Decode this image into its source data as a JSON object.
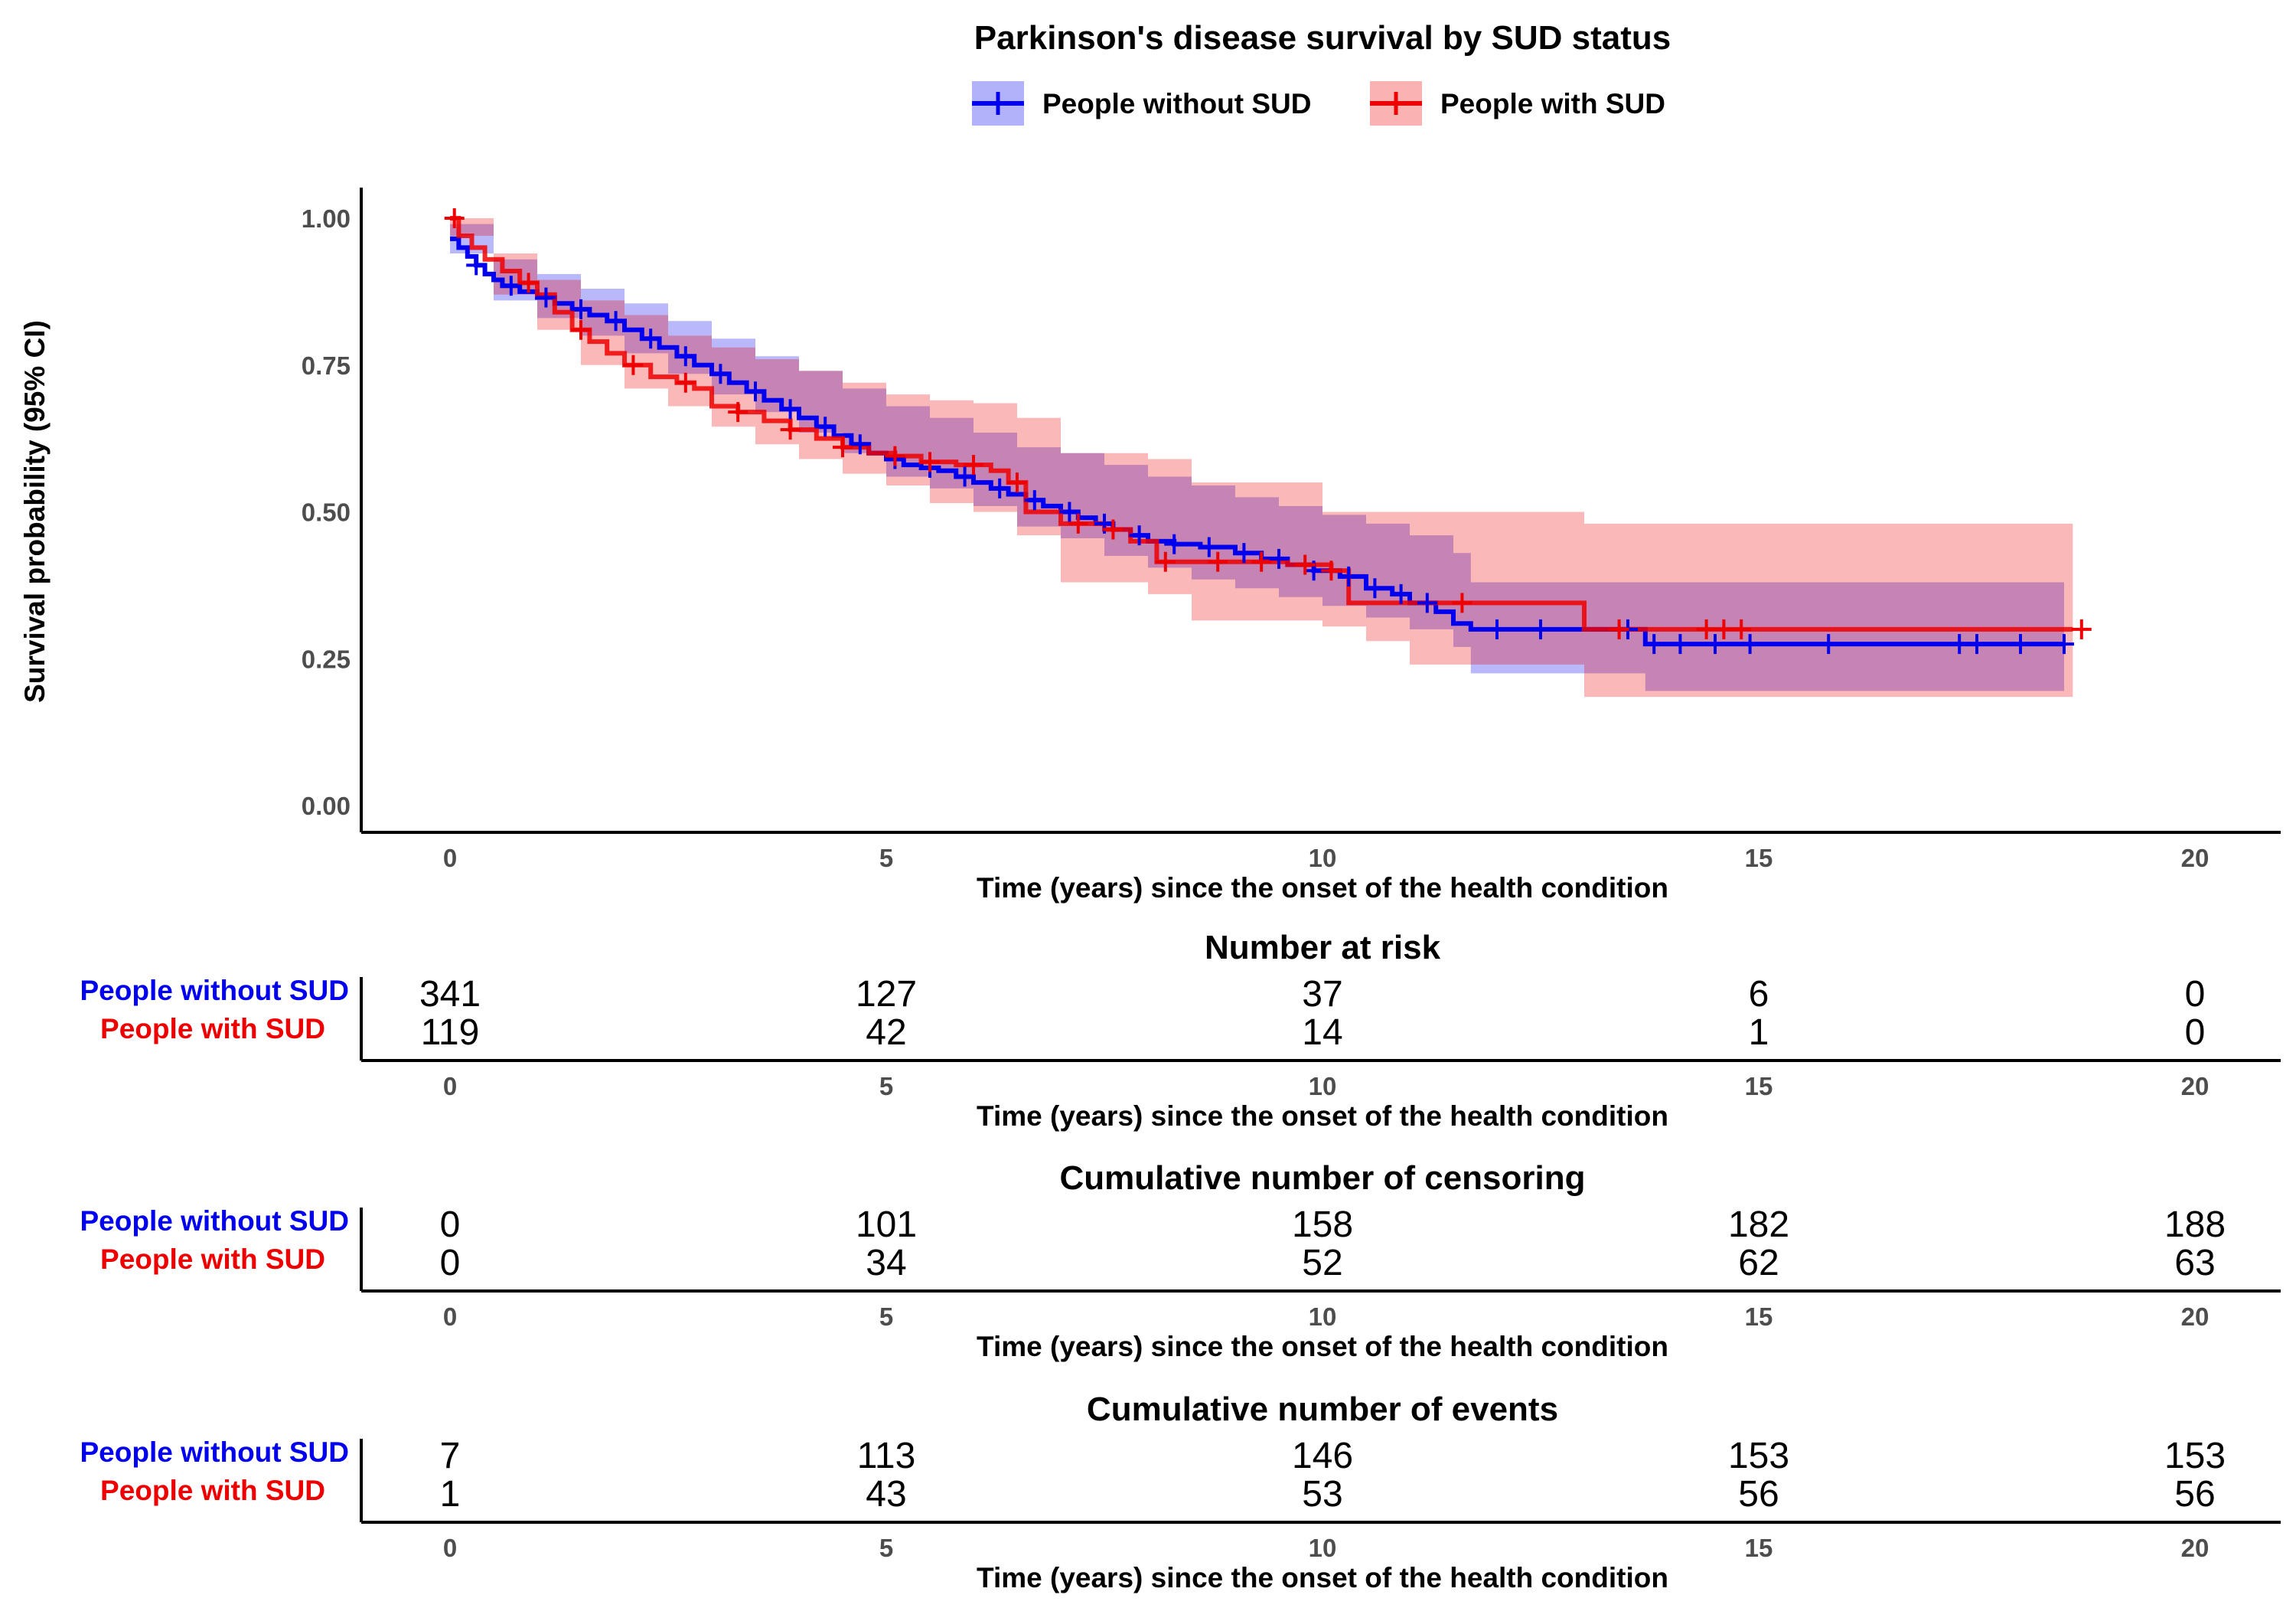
{
  "chart_data": {
    "type": "line",
    "subtype": "kaplan-meier",
    "title": "Parkinson's disease survival by SUD status",
    "xlabel": "Time (years) since the onset of the health condition",
    "ylabel": "Survival probability (95% CI)",
    "xlim": [
      0,
      20
    ],
    "ylim": [
      0,
      1
    ],
    "x_ticks": [
      0,
      5,
      10,
      15,
      20
    ],
    "y_ticks": [
      0.0,
      0.25,
      0.5,
      0.75,
      1.0
    ],
    "y_tick_labels": [
      "0.00",
      "0.25",
      "0.50",
      "0.75",
      "1.00"
    ],
    "legend_position": "top",
    "colors": {
      "without": "#0000ee",
      "with": "#ee0000",
      "overlap": "#b36b99"
    },
    "series": [
      {
        "name": "People without SUD",
        "color": "#0000ee",
        "x": [
          0,
          0.1,
          0.2,
          0.3,
          0.4,
          0.5,
          0.6,
          0.8,
          1.0,
          1.2,
          1.4,
          1.6,
          1.8,
          2.0,
          2.2,
          2.4,
          2.6,
          2.8,
          3.0,
          3.2,
          3.4,
          3.6,
          3.8,
          4.0,
          4.2,
          4.4,
          4.6,
          4.8,
          5.0,
          5.2,
          5.4,
          5.6,
          5.8,
          6.0,
          6.2,
          6.4,
          6.6,
          6.8,
          7.0,
          7.2,
          7.4,
          7.6,
          7.8,
          8.0,
          8.3,
          8.6,
          9.0,
          9.3,
          9.6,
          9.9,
          10.2,
          10.5,
          10.8,
          11.0,
          11.3,
          11.5,
          11.7,
          13.7,
          18.5
        ],
        "y": [
          0.965,
          0.95,
          0.935,
          0.92,
          0.905,
          0.895,
          0.885,
          0.875,
          0.865,
          0.855,
          0.845,
          0.835,
          0.825,
          0.81,
          0.795,
          0.78,
          0.765,
          0.75,
          0.735,
          0.72,
          0.705,
          0.69,
          0.675,
          0.66,
          0.645,
          0.63,
          0.615,
          0.6,
          0.59,
          0.58,
          0.575,
          0.57,
          0.56,
          0.55,
          0.54,
          0.53,
          0.52,
          0.51,
          0.5,
          0.49,
          0.48,
          0.47,
          0.46,
          0.45,
          0.445,
          0.44,
          0.43,
          0.42,
          0.41,
          0.4,
          0.39,
          0.37,
          0.36,
          0.345,
          0.33,
          0.31,
          0.3,
          0.275,
          0.275
        ],
        "ci_x": [
          0,
          0.5,
          1.0,
          1.5,
          2.0,
          2.5,
          3.0,
          3.5,
          4.0,
          4.5,
          5.0,
          5.5,
          6.0,
          6.5,
          7.0,
          7.5,
          8.0,
          8.5,
          9.0,
          9.5,
          10.0,
          10.5,
          11.0,
          11.5,
          11.7,
          12.5,
          13.0,
          13.7,
          18.5
        ],
        "ci_lower": [
          0.94,
          0.86,
          0.83,
          0.8,
          0.77,
          0.735,
          0.7,
          0.67,
          0.635,
          0.6,
          0.56,
          0.54,
          0.51,
          0.475,
          0.455,
          0.425,
          0.405,
          0.385,
          0.37,
          0.355,
          0.34,
          0.32,
          0.3,
          0.27,
          0.225,
          0.225,
          0.225,
          0.195,
          0.195
        ],
        "ci_upper": [
          0.99,
          0.93,
          0.905,
          0.88,
          0.855,
          0.825,
          0.795,
          0.765,
          0.74,
          0.71,
          0.68,
          0.66,
          0.635,
          0.61,
          0.6,
          0.58,
          0.56,
          0.545,
          0.525,
          0.51,
          0.495,
          0.48,
          0.46,
          0.43,
          0.38,
          0.38,
          0.38,
          0.38,
          0.38
        ]
      },
      {
        "name": "People with SUD",
        "color": "#ee0000",
        "x": [
          0,
          0.1,
          0.25,
          0.4,
          0.6,
          0.8,
          1.0,
          1.2,
          1.4,
          1.6,
          1.8,
          2.0,
          2.3,
          2.6,
          2.8,
          3.0,
          3.3,
          3.6,
          3.9,
          4.2,
          4.5,
          4.8,
          5.1,
          5.4,
          5.8,
          6.2,
          6.4,
          6.6,
          7.0,
          7.5,
          7.8,
          8.1,
          8.6,
          9.2,
          9.6,
          10.1,
          10.3,
          11.0,
          13.0,
          18.6
        ],
        "y": [
          1.0,
          0.97,
          0.95,
          0.93,
          0.91,
          0.89,
          0.87,
          0.84,
          0.81,
          0.79,
          0.77,
          0.75,
          0.73,
          0.72,
          0.71,
          0.68,
          0.67,
          0.655,
          0.64,
          0.625,
          0.61,
          0.6,
          0.595,
          0.585,
          0.58,
          0.57,
          0.55,
          0.5,
          0.48,
          0.47,
          0.45,
          0.415,
          0.415,
          0.415,
          0.41,
          0.4,
          0.345,
          0.345,
          0.3,
          0.3
        ],
        "ci_x": [
          0,
          0.5,
          1.0,
          1.5,
          2.0,
          2.5,
          3.0,
          3.5,
          4.0,
          4.5,
          5.0,
          5.5,
          6.0,
          6.5,
          7.0,
          7.5,
          8.0,
          8.5,
          9.0,
          9.5,
          10.0,
          10.5,
          11.0,
          11.5,
          12.0,
          13.0,
          18.6
        ],
        "ci_lower": [
          0.97,
          0.87,
          0.81,
          0.75,
          0.71,
          0.68,
          0.645,
          0.615,
          0.59,
          0.565,
          0.545,
          0.515,
          0.5,
          0.46,
          0.38,
          0.38,
          0.36,
          0.315,
          0.315,
          0.315,
          0.305,
          0.28,
          0.24,
          0.24,
          0.24,
          0.185,
          0.185
        ],
        "ci_upper": [
          1.0,
          0.94,
          0.895,
          0.86,
          0.835,
          0.8,
          0.78,
          0.76,
          0.74,
          0.72,
          0.7,
          0.69,
          0.685,
          0.66,
          0.6,
          0.6,
          0.59,
          0.55,
          0.55,
          0.55,
          0.5,
          0.5,
          0.5,
          0.5,
          0.5,
          0.48,
          0.48
        ]
      }
    ],
    "censor_marks": {
      "People without SUD": [
        0.3,
        0.7,
        1.1,
        1.5,
        1.9,
        2.3,
        2.7,
        3.1,
        3.5,
        3.9,
        4.3,
        4.7,
        5.1,
        5.5,
        5.9,
        6.3,
        6.7,
        7.1,
        7.5,
        7.9,
        8.3,
        8.7,
        9.1,
        9.5,
        9.9,
        10.3,
        10.6,
        10.9,
        11.2,
        12.0,
        12.5,
        13.5,
        13.8,
        14.1,
        14.5,
        14.9,
        15.8,
        17.3,
        17.5,
        18.0,
        18.5
      ],
      "People with SUD": [
        0.05,
        0.9,
        1.5,
        2.1,
        2.7,
        3.3,
        3.9,
        4.5,
        5.1,
        5.5,
        6.0,
        6.5,
        7.2,
        7.6,
        8.2,
        8.8,
        9.3,
        9.8,
        10.1,
        11.6,
        13.4,
        14.4,
        14.6,
        14.8,
        18.7
      ]
    },
    "tables": [
      {
        "title": "Number at risk",
        "rows": [
          {
            "name": "People without SUD",
            "values": [
              341,
              127,
              37,
              6,
              0
            ]
          },
          {
            "name": "People with SUD",
            "values": [
              119,
              42,
              14,
              1,
              0
            ]
          }
        ]
      },
      {
        "title": "Cumulative number of censoring",
        "rows": [
          {
            "name": "People without SUD",
            "values": [
              0,
              101,
              158,
              182,
              188
            ]
          },
          {
            "name": "People with SUD",
            "values": [
              0,
              34,
              52,
              62,
              63
            ]
          }
        ]
      },
      {
        "title": "Cumulative number of events",
        "rows": [
          {
            "name": "People without SUD",
            "values": [
              7,
              113,
              146,
              153,
              153
            ]
          },
          {
            "name": "People with SUD",
            "values": [
              1,
              43,
              53,
              56,
              56
            ]
          }
        ]
      }
    ]
  }
}
